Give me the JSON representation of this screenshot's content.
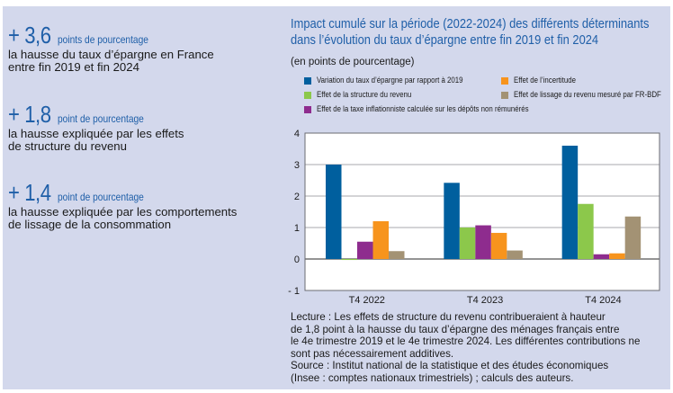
{
  "highlights": [
    {
      "value": "+ 3,6",
      "unit": "points de pourcentage",
      "description": [
        "la hausse du taux d’épargne en France",
        "entre fin 2019 et fin 2024"
      ]
    },
    {
      "value": "+ 1,8",
      "unit": "point de pourcentage",
      "description": [
        "la hausse expliquée par les effets",
        "de structure du revenu"
      ]
    },
    {
      "value": "+ 1,4",
      "unit": "point de pourcentage",
      "description": [
        "la hausse expliquée par les comportements",
        "de lissage de la consommation"
      ]
    }
  ],
  "colors": {
    "panel_background": "#d3d8ec",
    "accent_blue": "#1f5fa8"
  },
  "footer": {
    "lecture": [
      "Lecture : Les effets de structure du revenu contribueraient à hauteur",
      "de 1,8 point à la hausse du taux d’épargne des ménages français entre",
      "le 4e trimestre 2019 et le 4e trimestre 2024. Les différentes contributions ne",
      "sont pas nécessairement additives."
    ],
    "source": [
      "Source : Institut national de la statistique et des études économiques",
      "(Insee : comptes nationaux trimestriels) ; calculs des auteurs."
    ]
  },
  "chart_data": {
    "type": "bar",
    "title": [
      "Impact cumulé sur la période (2022-2024) des différents déterminants",
      "dans l’évolution du taux d’épargne entre fin 2019 et fin 2024"
    ],
    "subtitle": "(en points de pourcentage)",
    "xlabel": "",
    "ylabel": "",
    "ylim": [
      -1,
      4
    ],
    "yticks": [
      "4",
      "3",
      "2",
      "1",
      "0",
      "- 1"
    ],
    "ytick_values": [
      4,
      3,
      2,
      1,
      0,
      -1
    ],
    "grid": true,
    "legend_position": "top",
    "categories": [
      "T4 2022",
      "T4 2023",
      "T4 2024"
    ],
    "series": [
      {
        "name": "Variation du taux d’épargne par rapport à 2019",
        "color": "#005f9e",
        "values": [
          3.0,
          2.42,
          3.6
        ]
      },
      {
        "name": "Effet de la structure du revenu",
        "color": "#8cc84b",
        "values": [
          -0.03,
          1.0,
          1.75
        ]
      },
      {
        "name": "Effet de la taxe inflationniste calculée sur les dépôts non rémunérés",
        "color": "#8e2c8e",
        "values": [
          0.55,
          1.07,
          0.15
        ]
      },
      {
        "name": "Effet de l’incertitude",
        "color": "#f7941d",
        "values": [
          1.2,
          0.83,
          0.18
        ]
      },
      {
        "name": "Effet de lissage du revenu mesuré par FR-BDF",
        "color": "#a39274",
        "values": [
          0.25,
          0.27,
          1.35
        ]
      }
    ]
  }
}
